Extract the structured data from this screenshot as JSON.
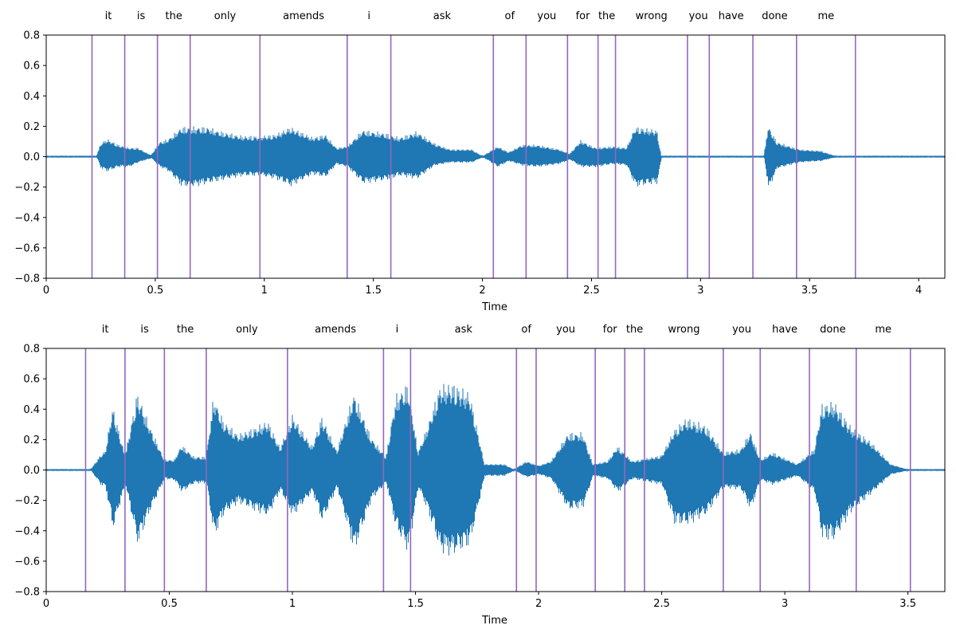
{
  "chart_data": [
    {
      "type": "line",
      "subtype": "waveform-with-word-boundaries",
      "xlabel": "Time",
      "ylabel": "",
      "xlim": [
        0,
        4.12
      ],
      "ylim": [
        -0.8,
        0.8
      ],
      "x_ticks": [
        0,
        0.5,
        1,
        1.5,
        2,
        2.5,
        3,
        3.5,
        4
      ],
      "x_tick_labels": [
        "0",
        "0.5",
        "1",
        "1.5",
        "2",
        "2.5",
        "3",
        "3.5",
        "4"
      ],
      "y_ticks": [
        -0.8,
        -0.6,
        -0.4,
        -0.2,
        0.0,
        0.2,
        0.4,
        0.6,
        0.8
      ],
      "y_tick_labels": [
        "−0.8",
        "−0.6",
        "−0.4",
        "−0.2",
        "0.0",
        "0.2",
        "0.4",
        "0.6",
        "0.8"
      ],
      "grid": false,
      "boundaries": [
        0.21,
        0.36,
        0.51,
        0.66,
        0.98,
        1.38,
        1.58,
        2.05,
        2.2,
        2.39,
        2.53,
        2.61,
        2.94,
        3.04,
        3.24,
        3.44,
        3.71
      ],
      "words": [
        {
          "text": "it",
          "start": 0.21,
          "end": 0.36
        },
        {
          "text": "is",
          "start": 0.36,
          "end": 0.51
        },
        {
          "text": "the",
          "start": 0.51,
          "end": 0.66
        },
        {
          "text": "only",
          "start": 0.66,
          "end": 0.98
        },
        {
          "text": "amends",
          "start": 0.98,
          "end": 1.38
        },
        {
          "text": "i",
          "start": 1.38,
          "end": 1.58
        },
        {
          "text": "ask",
          "start": 1.58,
          "end": 2.05
        },
        {
          "text": "of",
          "start": 2.05,
          "end": 2.2
        },
        {
          "text": "you",
          "start": 2.2,
          "end": 2.39
        },
        {
          "text": "for",
          "start": 2.39,
          "end": 2.53
        },
        {
          "text": "the",
          "start": 2.53,
          "end": 2.61
        },
        {
          "text": "wrong",
          "start": 2.61,
          "end": 2.94
        },
        {
          "text": "you",
          "start": 2.94,
          "end": 3.04
        },
        {
          "text": "have",
          "start": 3.04,
          "end": 3.24
        },
        {
          "text": "done",
          "start": 3.24,
          "end": 3.44
        },
        {
          "text": "me",
          "start": 3.44,
          "end": 3.71
        }
      ],
      "envelope": {
        "t": [
          0,
          0.23,
          0.25,
          0.28,
          0.33,
          0.38,
          0.42,
          0.48,
          0.52,
          0.56,
          0.62,
          0.68,
          0.74,
          0.8,
          0.9,
          0.98,
          1.05,
          1.12,
          1.22,
          1.28,
          1.33,
          1.38,
          1.45,
          1.55,
          1.62,
          1.7,
          1.78,
          1.85,
          1.95,
          2.0,
          2.07,
          2.12,
          2.18,
          2.25,
          2.35,
          2.4,
          2.45,
          2.52,
          2.6,
          2.66,
          2.7,
          2.75,
          2.8,
          2.82,
          3.29,
          3.31,
          3.35,
          3.45,
          3.55,
          3.62,
          4.12
        ],
        "pos": [
          0.003,
          0.003,
          0.09,
          0.12,
          0.08,
          0.06,
          0.06,
          0.01,
          0.1,
          0.12,
          0.2,
          0.2,
          0.2,
          0.17,
          0.14,
          0.14,
          0.15,
          0.2,
          0.13,
          0.15,
          0.06,
          0.07,
          0.18,
          0.16,
          0.13,
          0.17,
          0.09,
          0.05,
          0.05,
          0.003,
          0.07,
          0.03,
          0.08,
          0.08,
          0.05,
          0.02,
          0.11,
          0.06,
          0.07,
          0.06,
          0.2,
          0.19,
          0.18,
          0.003,
          0.003,
          0.21,
          0.1,
          0.05,
          0.04,
          0.003,
          0.003
        ],
        "neg": [
          0.003,
          0.003,
          0.08,
          0.1,
          0.07,
          0.07,
          0.04,
          0.01,
          0.07,
          0.1,
          0.2,
          0.2,
          0.18,
          0.16,
          0.13,
          0.13,
          0.15,
          0.2,
          0.12,
          0.14,
          0.05,
          0.07,
          0.18,
          0.16,
          0.13,
          0.15,
          0.06,
          0.04,
          0.04,
          0.003,
          0.07,
          0.03,
          0.06,
          0.07,
          0.05,
          0.02,
          0.07,
          0.07,
          0.05,
          0.06,
          0.2,
          0.19,
          0.18,
          0.003,
          0.003,
          0.22,
          0.08,
          0.04,
          0.03,
          0.003,
          0.003
        ]
      },
      "colors": {
        "waveform": "#1f77b4",
        "boundary": "#9467bd"
      }
    },
    {
      "type": "line",
      "subtype": "waveform-with-word-boundaries",
      "xlabel": "Time",
      "ylabel": "",
      "xlim": [
        0,
        3.65
      ],
      "ylim": [
        -0.8,
        0.8
      ],
      "x_ticks": [
        0,
        0.5,
        1,
        1.5,
        2,
        2.5,
        3,
        3.5
      ],
      "x_tick_labels": [
        "0",
        "0.5",
        "1",
        "1.5",
        "2",
        "2.5",
        "3",
        "3.5"
      ],
      "y_ticks": [
        -0.8,
        -0.6,
        -0.4,
        -0.2,
        0.0,
        0.2,
        0.4,
        0.6,
        0.8
      ],
      "y_tick_labels": [
        "−0.8",
        "−0.6",
        "−0.4",
        "−0.2",
        "0.0",
        "0.2",
        "0.4",
        "0.6",
        "0.8"
      ],
      "grid": false,
      "boundaries": [
        0.16,
        0.32,
        0.48,
        0.65,
        0.98,
        1.37,
        1.48,
        1.91,
        1.99,
        2.23,
        2.35,
        2.43,
        2.75,
        2.9,
        3.1,
        3.29,
        3.51
      ],
      "words": [
        {
          "text": "it",
          "start": 0.16,
          "end": 0.32
        },
        {
          "text": "is",
          "start": 0.32,
          "end": 0.48
        },
        {
          "text": "the",
          "start": 0.48,
          "end": 0.65
        },
        {
          "text": "only",
          "start": 0.65,
          "end": 0.98
        },
        {
          "text": "amends",
          "start": 0.98,
          "end": 1.37
        },
        {
          "text": "i",
          "start": 1.37,
          "end": 1.48
        },
        {
          "text": "ask",
          "start": 1.48,
          "end": 1.91
        },
        {
          "text": "of",
          "start": 1.91,
          "end": 1.99
        },
        {
          "text": "you",
          "start": 1.99,
          "end": 2.23
        },
        {
          "text": "for",
          "start": 2.23,
          "end": 2.35
        },
        {
          "text": "the",
          "start": 2.35,
          "end": 2.43
        },
        {
          "text": "wrong",
          "start": 2.43,
          "end": 2.75
        },
        {
          "text": "you",
          "start": 2.75,
          "end": 2.9
        },
        {
          "text": "have",
          "start": 2.9,
          "end": 3.1
        },
        {
          "text": "done",
          "start": 3.1,
          "end": 3.29
        },
        {
          "text": "me",
          "start": 3.29,
          "end": 3.51
        }
      ],
      "envelope": {
        "t": [
          0,
          0.18,
          0.22,
          0.24,
          0.27,
          0.32,
          0.37,
          0.42,
          0.48,
          0.52,
          0.55,
          0.6,
          0.65,
          0.68,
          0.72,
          0.78,
          0.84,
          0.9,
          0.95,
          1.0,
          1.08,
          1.12,
          1.18,
          1.25,
          1.32,
          1.38,
          1.42,
          1.47,
          1.51,
          1.55,
          1.6,
          1.65,
          1.72,
          1.78,
          1.86,
          1.9,
          1.95,
          2.0,
          2.05,
          2.12,
          2.18,
          2.22,
          2.28,
          2.32,
          2.38,
          2.44,
          2.5,
          2.55,
          2.6,
          2.68,
          2.75,
          2.82,
          2.86,
          2.9,
          2.95,
          3.05,
          3.12,
          3.15,
          3.2,
          3.27,
          3.35,
          3.43,
          3.5,
          3.65
        ],
        "pos": [
          0.003,
          0.003,
          0.1,
          0.13,
          0.43,
          0.1,
          0.52,
          0.3,
          0.07,
          0.07,
          0.17,
          0.09,
          0.09,
          0.5,
          0.33,
          0.24,
          0.28,
          0.33,
          0.15,
          0.37,
          0.16,
          0.36,
          0.13,
          0.52,
          0.22,
          0.09,
          0.5,
          0.58,
          0.12,
          0.3,
          0.57,
          0.58,
          0.52,
          0.04,
          0.04,
          0.003,
          0.06,
          0.03,
          0.06,
          0.25,
          0.25,
          0.04,
          0.06,
          0.16,
          0.06,
          0.08,
          0.1,
          0.27,
          0.35,
          0.3,
          0.12,
          0.14,
          0.26,
          0.07,
          0.12,
          0.04,
          0.14,
          0.44,
          0.46,
          0.29,
          0.19,
          0.04,
          0.003,
          0.003
        ],
        "neg": [
          0.003,
          0.003,
          0.1,
          0.12,
          0.4,
          0.1,
          0.5,
          0.28,
          0.06,
          0.07,
          0.15,
          0.09,
          0.09,
          0.45,
          0.3,
          0.22,
          0.27,
          0.31,
          0.14,
          0.31,
          0.15,
          0.35,
          0.12,
          0.55,
          0.2,
          0.09,
          0.4,
          0.55,
          0.12,
          0.28,
          0.55,
          0.57,
          0.5,
          0.04,
          0.04,
          0.003,
          0.05,
          0.03,
          0.06,
          0.27,
          0.25,
          0.04,
          0.06,
          0.15,
          0.06,
          0.08,
          0.1,
          0.36,
          0.37,
          0.3,
          0.12,
          0.13,
          0.27,
          0.07,
          0.1,
          0.04,
          0.15,
          0.46,
          0.47,
          0.28,
          0.16,
          0.03,
          0.003,
          0.003
        ]
      },
      "colors": {
        "waveform": "#1f77b4",
        "boundary": "#9467bd"
      }
    }
  ]
}
